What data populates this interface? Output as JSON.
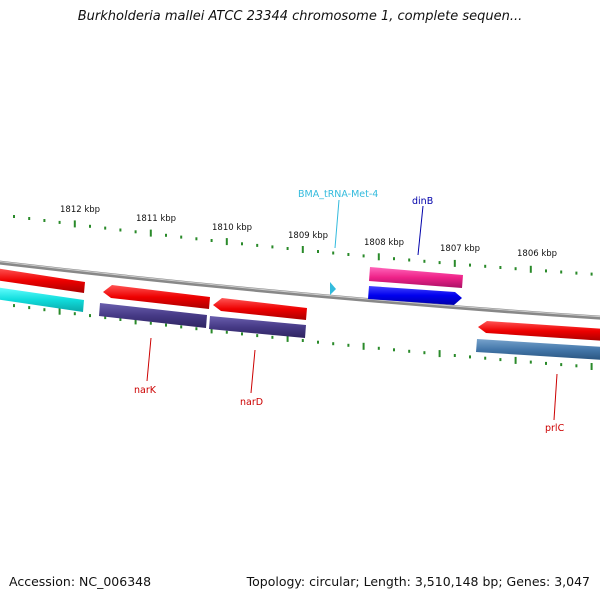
{
  "title": "Burkholderia mallei ATCC 23344 chromosome 1, complete sequen...",
  "footer": {
    "accession": "Accession: NC_006348",
    "topology": "Topology: circular; Length: 3,510,148 bp; Genes: 3,047"
  },
  "kbp_ticks": [
    {
      "label": "1812 kbp"
    },
    {
      "label": "1811 kbp"
    },
    {
      "label": "1810 kbp"
    },
    {
      "label": "1809 kbp"
    },
    {
      "label": "1808 kbp"
    },
    {
      "label": "1807 kbp"
    },
    {
      "label": "1806 kbp"
    }
  ],
  "genes": [
    {
      "label": "narK",
      "color": "#cc0000"
    },
    {
      "label": "narD",
      "color": "#cc0000"
    },
    {
      "label": "BMA_tRNA-Met-4",
      "color": "#33bbdd"
    },
    {
      "label": "dinB",
      "color": "#0000aa"
    },
    {
      "label": "prlC",
      "color": "#cc0000"
    }
  ],
  "colors": {
    "cds": "#ee1111",
    "cds_slate": "#4a3f8a",
    "cds_cyan": "#11dddd",
    "cds_pink": "#ee2288",
    "cds_blue": "#0000ee",
    "cds_steel": "#4477aa",
    "trna": "#33bbdd",
    "ticks": "#2a8a2a",
    "backbone": "#888888"
  }
}
